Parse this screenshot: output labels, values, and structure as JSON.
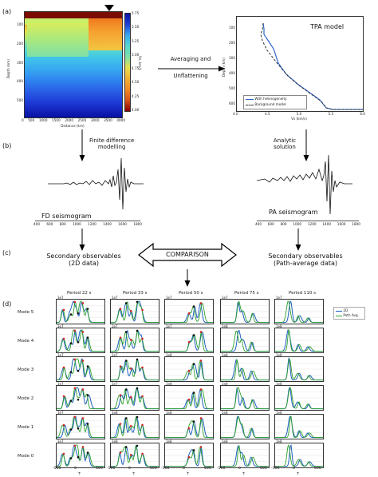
{
  "panel_labels": {
    "a": "(a)",
    "b": "(b)",
    "c": "(c)",
    "d": "(d)"
  },
  "panel_a": {
    "colorbar_ticks": [
      "5.75",
      "5.50",
      "5.25",
      "5.00",
      "4.75",
      "4.50",
      "4.25",
      "4.00"
    ],
    "colorbar_label": "Vs, km/s",
    "x_ticks": [
      "0",
      "500",
      "1000",
      "1500",
      "2000",
      "2500",
      "3000",
      "3500",
      "4000"
    ],
    "xlabel": "Distance (km)",
    "y_ticks": [
      "100",
      "200",
      "300",
      "400",
      "500"
    ],
    "ylabel": "Depth (km)"
  },
  "arrow_averaging": {
    "line1": "Averaging and",
    "line2": "Unflattening"
  },
  "tpa": {
    "title": "TPA model",
    "legend": [
      "With heterogeneity",
      "Background model"
    ],
    "y_ticks": [
      "100",
      "200",
      "300",
      "400",
      "500",
      "600"
    ],
    "ylabel": "Depth (km)",
    "x_ticks": [
      "4.0",
      "4.5",
      "5.0",
      "5.5",
      "6.0"
    ],
    "xlabel": "Vs (km/s)",
    "colors": {
      "hetero": "#3366cc",
      "background": "#333333"
    }
  },
  "panel_b": {
    "fd_step": {
      "line1": "Finite difference",
      "line2": "modelling"
    },
    "analytic_step": {
      "line1": "Analytic",
      "line2": "solution"
    },
    "fd_label": "FD seismogram",
    "pa_label": "PA seismogram",
    "fd_ticks": [
      "400",
      "600",
      "800",
      "1000",
      "1200",
      "1400",
      "1600",
      "1800"
    ],
    "pa_ticks": [
      "400",
      "600",
      "800",
      "1000",
      "1200",
      "1400",
      "1600",
      "1800"
    ]
  },
  "panel_c": {
    "left_box": {
      "line1": "Secondary observables",
      "line2": "(2D data)"
    },
    "right_box": {
      "line1": "Secondary observables",
      "line2": "(Path-average data)"
    },
    "comparison": "COMPARISON"
  },
  "panel_d": {
    "periods": [
      "Period 22 s",
      "Period 33 s",
      "Period 50 s",
      "Period 75 s",
      "Period 110 s"
    ],
    "modes": [
      "Mode 5",
      "Mode 4",
      "Mode 3",
      "Mode 2",
      "Mode 1",
      "Mode 0"
    ],
    "scale_labels": [
      [
        "1e7",
        "1e7",
        "1e7",
        "1e7",
        "1e7"
      ],
      [
        "1e7",
        "1e7",
        "1e7",
        "1e8",
        "1e8"
      ],
      [
        "1e7",
        "1e7",
        "1e8",
        "1e8",
        "1e8"
      ],
      [
        "1e7",
        "1e7",
        "1e8",
        "1e8",
        "1e8"
      ],
      [
        "1e7",
        "1e8",
        "1e8",
        "1e8",
        "1e8"
      ],
      [
        "1e7",
        "1e8",
        "1e8",
        "1e8",
        "1e8"
      ]
    ],
    "x_ticks": [
      "-500",
      "0",
      "500"
    ],
    "xlabel": "τ",
    "legend": [
      "2D",
      "Path Avg."
    ],
    "colors": {
      "d2": "#1f5fbf",
      "pathavg": "#2ca02c",
      "marker": "#d62728"
    }
  }
}
